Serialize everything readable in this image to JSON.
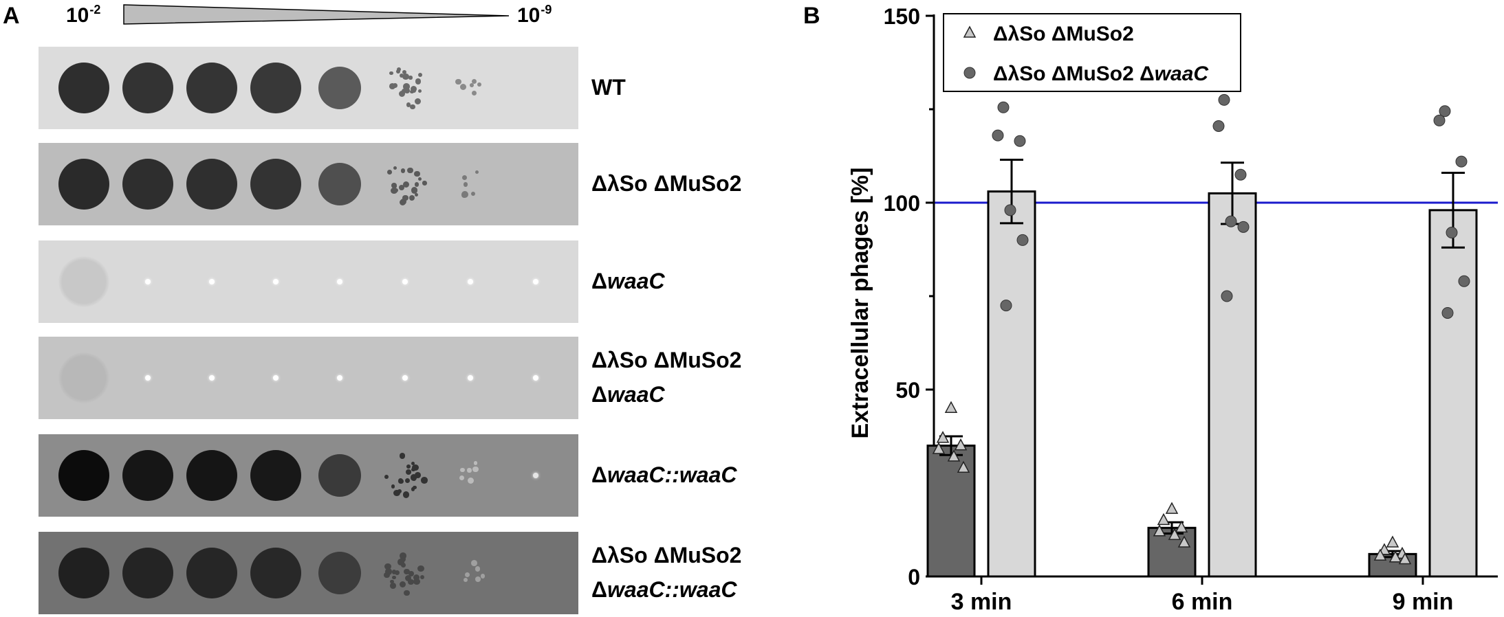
{
  "panel_a": {
    "letter": "A",
    "dilution_high": {
      "base": "10",
      "exp": "-2"
    },
    "dilution_low": {
      "base": "10",
      "exp": "-9"
    },
    "strips": [
      {
        "label_lines": [
          [
            {
              "t": "WT",
              "i": false
            }
          ]
        ],
        "bg": "#dcdcdc",
        "spots": [
          {
            "c": "#2e2e2e"
          },
          {
            "c": "#333333"
          },
          {
            "c": "#343434"
          },
          {
            "c": "#383838"
          },
          {
            "c": "#5a5a5a",
            "s": 0.85
          },
          {
            "c": "#6a6a6a",
            "s": 0.55,
            "cluster": true
          },
          {
            "c": "#8a8a8a",
            "s": 0.3,
            "cluster": true
          },
          null
        ]
      },
      {
        "label_lines": [
          [
            {
              "t": "ΔλSo ΔMuSo2",
              "i": false
            }
          ]
        ],
        "bg": "#bcbcbc",
        "spots": [
          {
            "c": "#2a2a2a"
          },
          {
            "c": "#2e2e2e"
          },
          {
            "c": "#2f2f2f"
          },
          {
            "c": "#333333"
          },
          {
            "c": "#4f4f4f",
            "s": 0.85
          },
          {
            "c": "#5a5a5a",
            "s": 0.5,
            "cluster": true
          },
          {
            "c": "#7a7a7a",
            "s": 0.35,
            "cluster": true
          },
          null
        ]
      },
      {
        "label_lines": [
          [
            {
              "t": "Δ",
              "i": false
            },
            {
              "t": "waaC",
              "i": true
            }
          ]
        ],
        "bg": "#d9d9d9",
        "spots": [
          {
            "c": "#c8c8c8",
            "faint": true
          },
          {
            "c": "#ffffff",
            "pin": true
          },
          {
            "c": "#ffffff",
            "pin": true
          },
          {
            "c": "#ffffff",
            "pin": true
          },
          {
            "c": "#ffffff",
            "pin": true
          },
          {
            "c": "#ffffff",
            "pin": true
          },
          {
            "c": "#ffffff",
            "pin": true
          },
          {
            "c": "#ffffff",
            "pin": true
          }
        ]
      },
      {
        "label_lines": [
          [
            {
              "t": "ΔλSo ΔMuSo2",
              "i": false
            }
          ],
          [
            {
              "t": "Δ",
              "i": false
            },
            {
              "t": "waaC",
              "i": true
            }
          ]
        ],
        "bg": "#c4c4c4",
        "spots": [
          {
            "c": "#b8b8b8",
            "faint": true
          },
          {
            "c": "#ffffff",
            "pin": true
          },
          {
            "c": "#ffffff",
            "pin": true
          },
          {
            "c": "#ffffff",
            "pin": true
          },
          {
            "c": "#ffffff",
            "pin": true
          },
          {
            "c": "#ffffff",
            "pin": true
          },
          {
            "c": "#ffffff",
            "pin": true
          },
          {
            "c": "#ffffff",
            "pin": true
          }
        ]
      },
      {
        "label_lines": [
          [
            {
              "t": "Δ",
              "i": false
            },
            {
              "t": "waaC::waaC",
              "i": true
            }
          ]
        ],
        "bg": "#8c8c8c",
        "spots": [
          {
            "c": "#0c0c0c"
          },
          {
            "c": "#161616"
          },
          {
            "c": "#151515"
          },
          {
            "c": "#181818"
          },
          {
            "c": "#3a3a3a",
            "s": 0.85
          },
          {
            "c": "#333333",
            "s": 0.5,
            "cluster": true
          },
          {
            "c": "#bbbbbb",
            "s": 0.3,
            "cluster": true
          },
          {
            "c": "#e6e6e6",
            "pin": true
          }
        ]
      },
      {
        "label_lines": [
          [
            {
              "t": "ΔλSo ΔMuSo2",
              "i": false
            }
          ],
          [
            {
              "t": "Δ",
              "i": false
            },
            {
              "t": "waaC::waaC",
              "i": true
            }
          ]
        ],
        "bg": "#727272",
        "spots": [
          {
            "c": "#202020"
          },
          {
            "c": "#242424"
          },
          {
            "c": "#262626"
          },
          {
            "c": "#282828"
          },
          {
            "c": "#3c3c3c",
            "s": 0.85
          },
          {
            "c": "#484848",
            "s": 0.55,
            "cluster": true
          },
          {
            "c": "#a0a0a0",
            "s": 0.25,
            "cluster": true
          },
          null
        ]
      }
    ]
  },
  "panel_b": {
    "letter": "B",
    "chart_data": {
      "type": "bar",
      "ylabel": "Extracellular phages [%]",
      "ylim": [
        0,
        150
      ],
      "yticks": [
        0,
        50,
        100,
        150
      ],
      "categories": [
        "3 min",
        "6 min",
        "9 min"
      ],
      "reference_line": {
        "y": 100,
        "color": "#1a1acc"
      },
      "legend_position": "top-left",
      "series": [
        {
          "name_parts": [
            {
              "t": "ΔλSo ΔMuSo2",
              "i": false
            }
          ],
          "marker": "triangle",
          "bar_color": "#666666",
          "marker_color": "#c8c8c8",
          "values": [
            35,
            13,
            6
          ],
          "errors": [
            2.5,
            1.5,
            0.8
          ],
          "points": [
            [
              45,
              37,
              35,
              34,
              32,
              29
            ],
            [
              18,
              15,
              13,
              12,
              11,
              9
            ],
            [
              9,
              7,
              6,
              5.5,
              5,
              4.5
            ]
          ]
        },
        {
          "name_parts": [
            {
              "t": "ΔλSo ΔMuSo2 Δ",
              "i": false
            },
            {
              "t": "waaC",
              "i": true
            }
          ],
          "marker": "circle",
          "bar_color": "#d8d8d8",
          "marker_color": "#666666",
          "values": [
            103,
            102.5,
            98
          ],
          "errors": [
            8.5,
            8.2,
            10
          ],
          "points": [
            [
              125.5,
              118,
              116.5,
              98,
              90,
              72.5
            ],
            [
              127.5,
              120.5,
              107.5,
              95,
              93.5,
              75
            ],
            [
              124.5,
              122,
              111,
              92,
              79,
              70.5
            ]
          ]
        }
      ]
    }
  }
}
